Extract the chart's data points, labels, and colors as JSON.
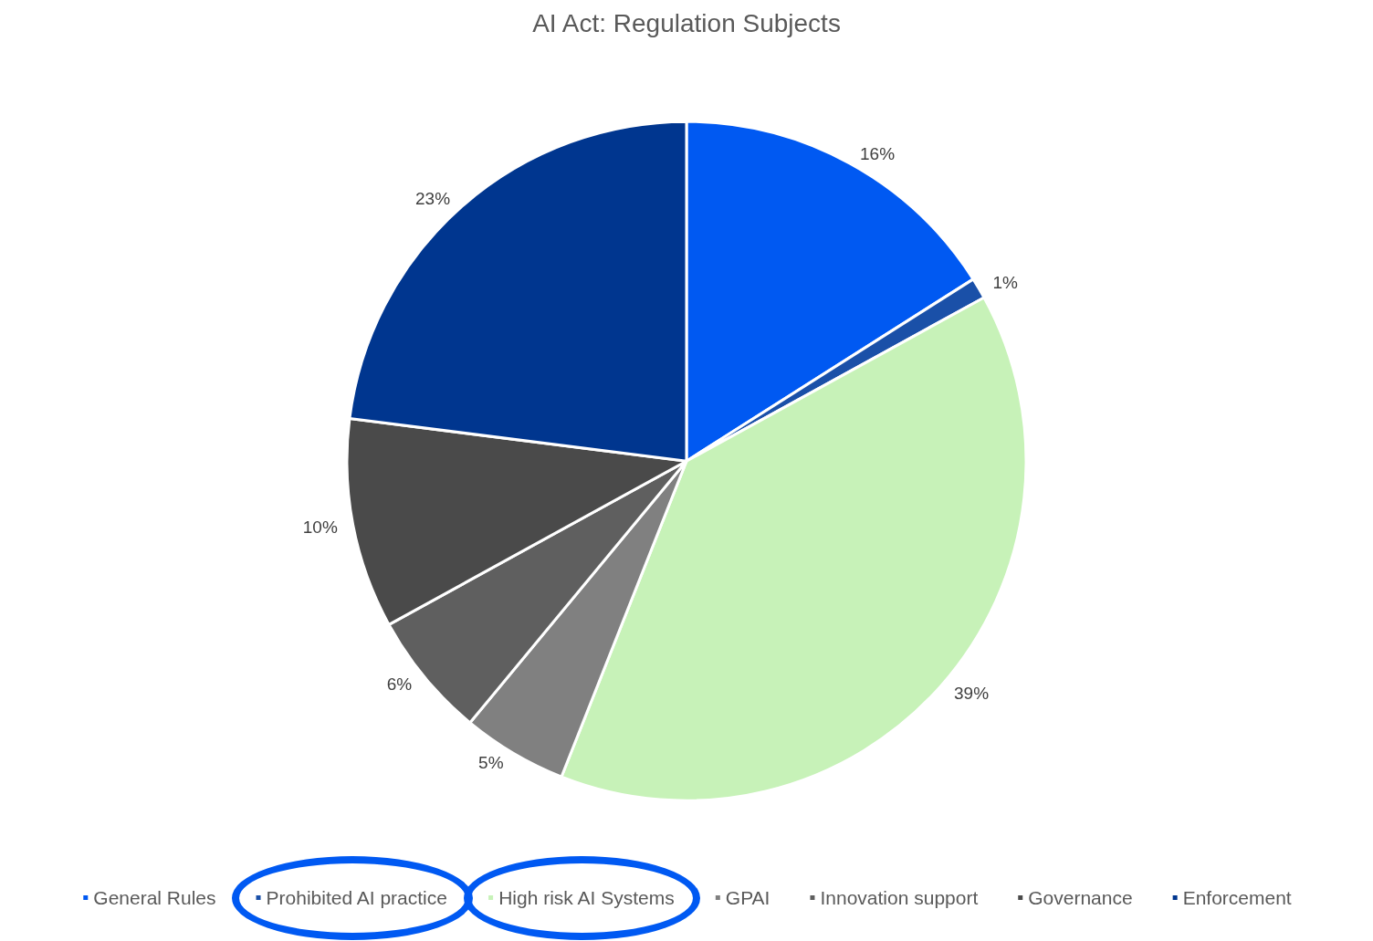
{
  "chart_data": {
    "type": "pie",
    "title": "AI Act: Regulation Subjects",
    "categories": [
      "General Rules",
      "Prohibited AI practice",
      "High risk AI Systems",
      "GPAI",
      "Innovation support",
      "Governance",
      "Enforcement"
    ],
    "values": [
      16,
      1,
      39,
      5,
      6,
      10,
      23
    ],
    "colors": [
      "#0059f2",
      "#1a50a8",
      "#c7f2b8",
      "#808080",
      "#5f5f5f",
      "#4a4a4a",
      "#00368f"
    ],
    "value_labels": [
      "16%",
      "1%",
      "39%",
      "5%",
      "6%",
      "10%",
      "23%"
    ],
    "legend": "bottom"
  }
}
